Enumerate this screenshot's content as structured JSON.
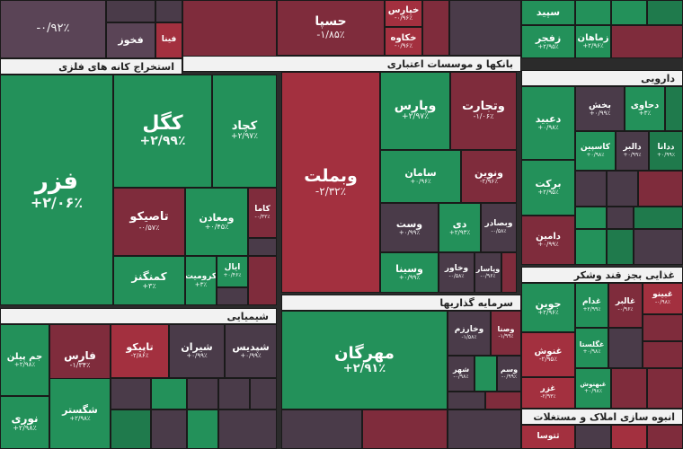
{
  "sectors": {
    "metals": "استخراج کانه های فلزی",
    "banks": "بانکها و موسسات اعتباری",
    "pharma": "دارویی",
    "chemicals": "شیمیایی",
    "investment": "سرمایه گذاریها",
    "sugar": "غذایی بجز قند وشکر",
    "realestate": "انبوه سازی املاک و مستغلات"
  },
  "tiles": {
    "fazr": {
      "name": "فزر",
      "change": "+۲/۰۶٪"
    },
    "kogol": {
      "name": "کگل",
      "change": "+۲/۹۹٪"
    },
    "kechad": {
      "name": "کچاد",
      "change": "+۲/۹۷٪"
    },
    "vabemellat": {
      "name": "وبملت",
      "change": "-۲/۳۲٪"
    },
    "vepars": {
      "name": "وپارس",
      "change": "+۲/۹۷٪"
    },
    "vetejarat": {
      "name": "وتجارت",
      "change": "-۱/۰۶٪"
    },
    "mehregan": {
      "name": "مهرگان",
      "change": "+۲/۹۱٪"
    },
    "topleft": {
      "name": "",
      "change": "-۰/۹۲٪"
    },
    "topcenter": {
      "name": "حسپا",
      "change": "-۱/۸۵٪"
    },
    "fakhoz": {
      "name": "فخوز",
      "change": ""
    },
    "fanna": {
      "name": "فینا",
      "change": ""
    },
    "kharas": {
      "name": "خپارس",
      "change": "-۰/۹۶٪"
    },
    "khakaveh": {
      "name": "خکاوه",
      "change": "-۰/۹۶٪"
    },
    "sepid": {
      "name": "سپید",
      "change": ""
    },
    "zafajr": {
      "name": "زفجر",
      "change": "+۲/۹۵٪"
    },
    "zamahan": {
      "name": "زماهان",
      "change": "+۲/۹۶٪"
    },
    "tasikou": {
      "name": "تاصیکو",
      "change": "-۰/۵۷٪"
    },
    "vemaadan": {
      "name": "ومعادن",
      "change": "+۰/۴۵٪"
    },
    "kama": {
      "name": "کاما",
      "change": "-۰/۳۲٪"
    },
    "kemangenz": {
      "name": "کمنگنز",
      "change": "+۳٪"
    },
    "kroumit": {
      "name": "کرومیت",
      "change": "+۳٪"
    },
    "ipal": {
      "name": "ایال",
      "change": "+۰/۴۶٪"
    },
    "saman": {
      "name": "سامان",
      "change": "+۰/۹۶٪"
    },
    "venovin": {
      "name": "ونوین",
      "change": "-۲/۹۶٪"
    },
    "vest": {
      "name": "وست",
      "change": "+۰/۹۹٪"
    },
    "dey": {
      "name": "دی",
      "change": "+۲/۹۳٪"
    },
    "vebesader": {
      "name": "وبصادر",
      "change": "-۰/۵۸٪"
    },
    "vesina": {
      "name": "وسینا",
      "change": "+۰/۹۹٪"
    },
    "vakhavar": {
      "name": "وخاور",
      "change": "-۰/۵۸٪"
    },
    "vapasar": {
      "name": "وپاسار",
      "change": "-۰/۹۶٪"
    },
    "dabid": {
      "name": "دعبید",
      "change": "+۰/۹۸٪"
    },
    "bakhsh": {
      "name": "بخش",
      "change": "+۰/۹۹٪"
    },
    "dahavi": {
      "name": "دحاوی",
      "change": "+۳٪"
    },
    "kasian": {
      "name": "کاسپین",
      "change": "+۰/۹۸٪"
    },
    "dalbar": {
      "name": "دالبر",
      "change": "+۰/۹۹٪"
    },
    "dadana": {
      "name": "ددانا",
      "change": "+۰/۹۹٪"
    },
    "barekat": {
      "name": "برکت",
      "change": "+۲/۹۵٪"
    },
    "daamin": {
      "name": "دامین",
      "change": "+۰/۹۹٪"
    },
    "jam": {
      "name": "جم پیلن",
      "change": "+۲/۹۸٪"
    },
    "fars": {
      "name": "فارس",
      "change": "-۱/۳۴٪"
    },
    "tapiko": {
      "name": "تاپیکو",
      "change": "-۲/۸۶٪"
    },
    "shiran": {
      "name": "شیران",
      "change": "+۰/۹۹٪"
    },
    "shebandar": {
      "name": "شپدیس",
      "change": "+۰/۹۹٪"
    },
    "shegoster": {
      "name": "شگستر",
      "change": "+۲/۹۸٪"
    },
    "nouri": {
      "name": "نوری",
      "change": "+۲/۹۸٪"
    },
    "joyin": {
      "name": "جوین",
      "change": "+۲/۹۶٪"
    },
    "ghadam": {
      "name": "غدام",
      "change": "+۲/۹۹٪"
    },
    "ghalber": {
      "name": "غالبر",
      "change": "-۰/۹۶٪"
    },
    "ghyno": {
      "name": "غبینو",
      "change": "-۰/۹۸٪"
    },
    "ghoush": {
      "name": "غنوش",
      "change": "-۲/۹۵٪"
    },
    "ghgolestan": {
      "name": "غگلستا",
      "change": "+۰/۹۸٪"
    },
    "ghazar": {
      "name": "غزر",
      "change": "-۲/۹۳٪"
    },
    "ghbahonar": {
      "name": "غبهنوش",
      "change": "+۰/۹۸٪"
    },
    "vekharazm": {
      "name": "وخارزم",
      "change": "-۱/۵۸٪"
    },
    "vesna": {
      "name": "وصنا",
      "change": "-۱/۹۹٪"
    },
    "shahr": {
      "name": "شهر",
      "change": "-۰/۹۸٪"
    },
    "tousa": {
      "name": "وسم",
      "change": "-۰/۹۹٪"
    },
    "tutousa": {
      "name": "ثتوسا",
      "change": ""
    }
  }
}
